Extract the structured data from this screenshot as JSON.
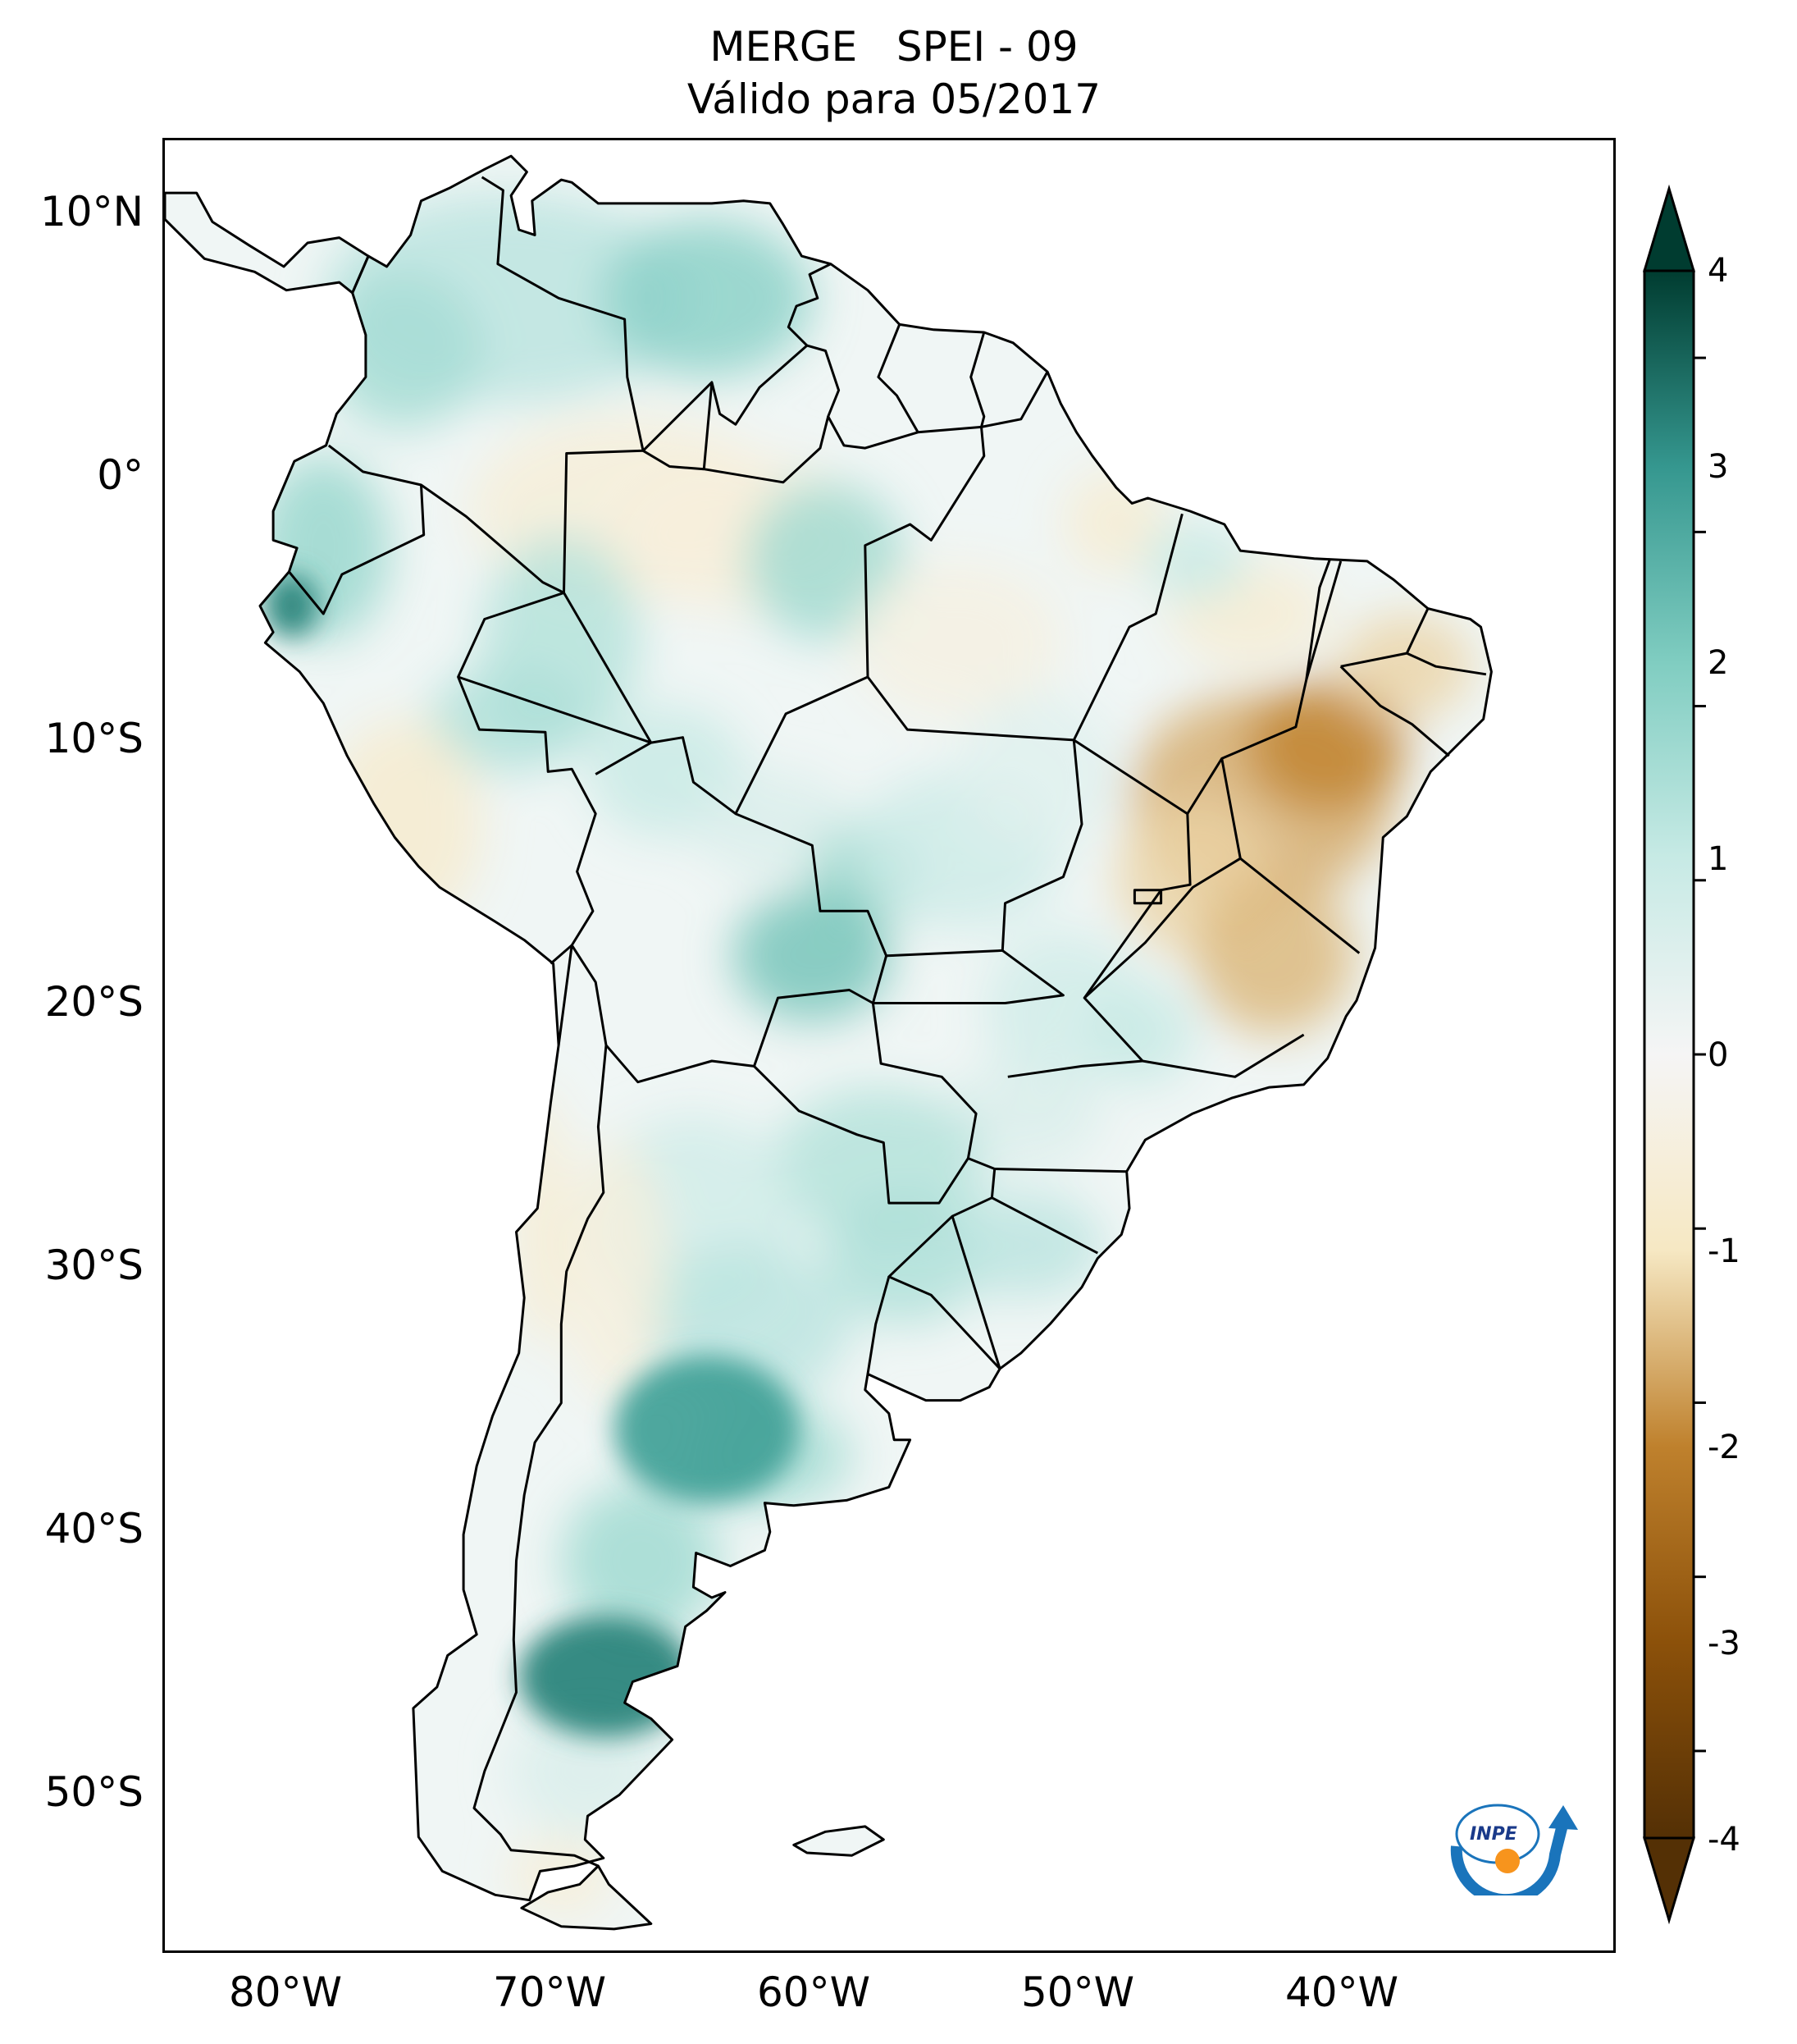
{
  "title": {
    "line1": "MERGE   SPEI - 09",
    "line2": "Válido para 05/2017"
  },
  "map": {
    "projection": "PlateCarree",
    "lon_range": [
      -85,
      -30
    ],
    "lat_range": [
      -56,
      13
    ],
    "lat_ticks": [
      "10°N",
      "0°",
      "10°S",
      "20°S",
      "30°S",
      "40°S",
      "50°S"
    ],
    "lon_ticks": [
      "80°W",
      "70°W",
      "60°W",
      "50°W",
      "40°W"
    ],
    "variable": "SPEI-9",
    "colormap": "BrBG",
    "regions": [
      {
        "name": "Caribbean Colombia / Venezuela",
        "value": 1.8
      },
      {
        "name": "Coastal Ecuador",
        "value": 3.0
      },
      {
        "name": "Eastern Amazon",
        "value": -0.6
      },
      {
        "name": "Bahia / Minas Gerais interior",
        "value": -2.0
      },
      {
        "name": "Mato Grosso do Sul / Paraguay",
        "value": 2.2
      },
      {
        "name": "La Pampa / Buenos Aires",
        "value": 3.0
      },
      {
        "name": "Chubut / Santa Cruz",
        "value": 3.2
      },
      {
        "name": "Southern Brazil / Uruguay",
        "value": 1.2
      }
    ]
  },
  "colorbar": {
    "min": -4,
    "max": 4,
    "tick_labels": [
      "4",
      "3",
      "2",
      "1",
      "0",
      "-1",
      "-2",
      "-3",
      "-4"
    ],
    "extend": "both",
    "colors": {
      "minus4": "#543005",
      "minus3": "#8c510a",
      "minus2": "#bf812d",
      "minus1": "#f6e8c3",
      "zero": "#f5f5f5",
      "plus1": "#c7eae5",
      "plus2": "#80cdc1",
      "plus3": "#35978f",
      "plus4": "#003c30"
    }
  },
  "logo": {
    "text": "INPE",
    "accent_colors": [
      "#1a74bb",
      "#f7941d"
    ]
  }
}
